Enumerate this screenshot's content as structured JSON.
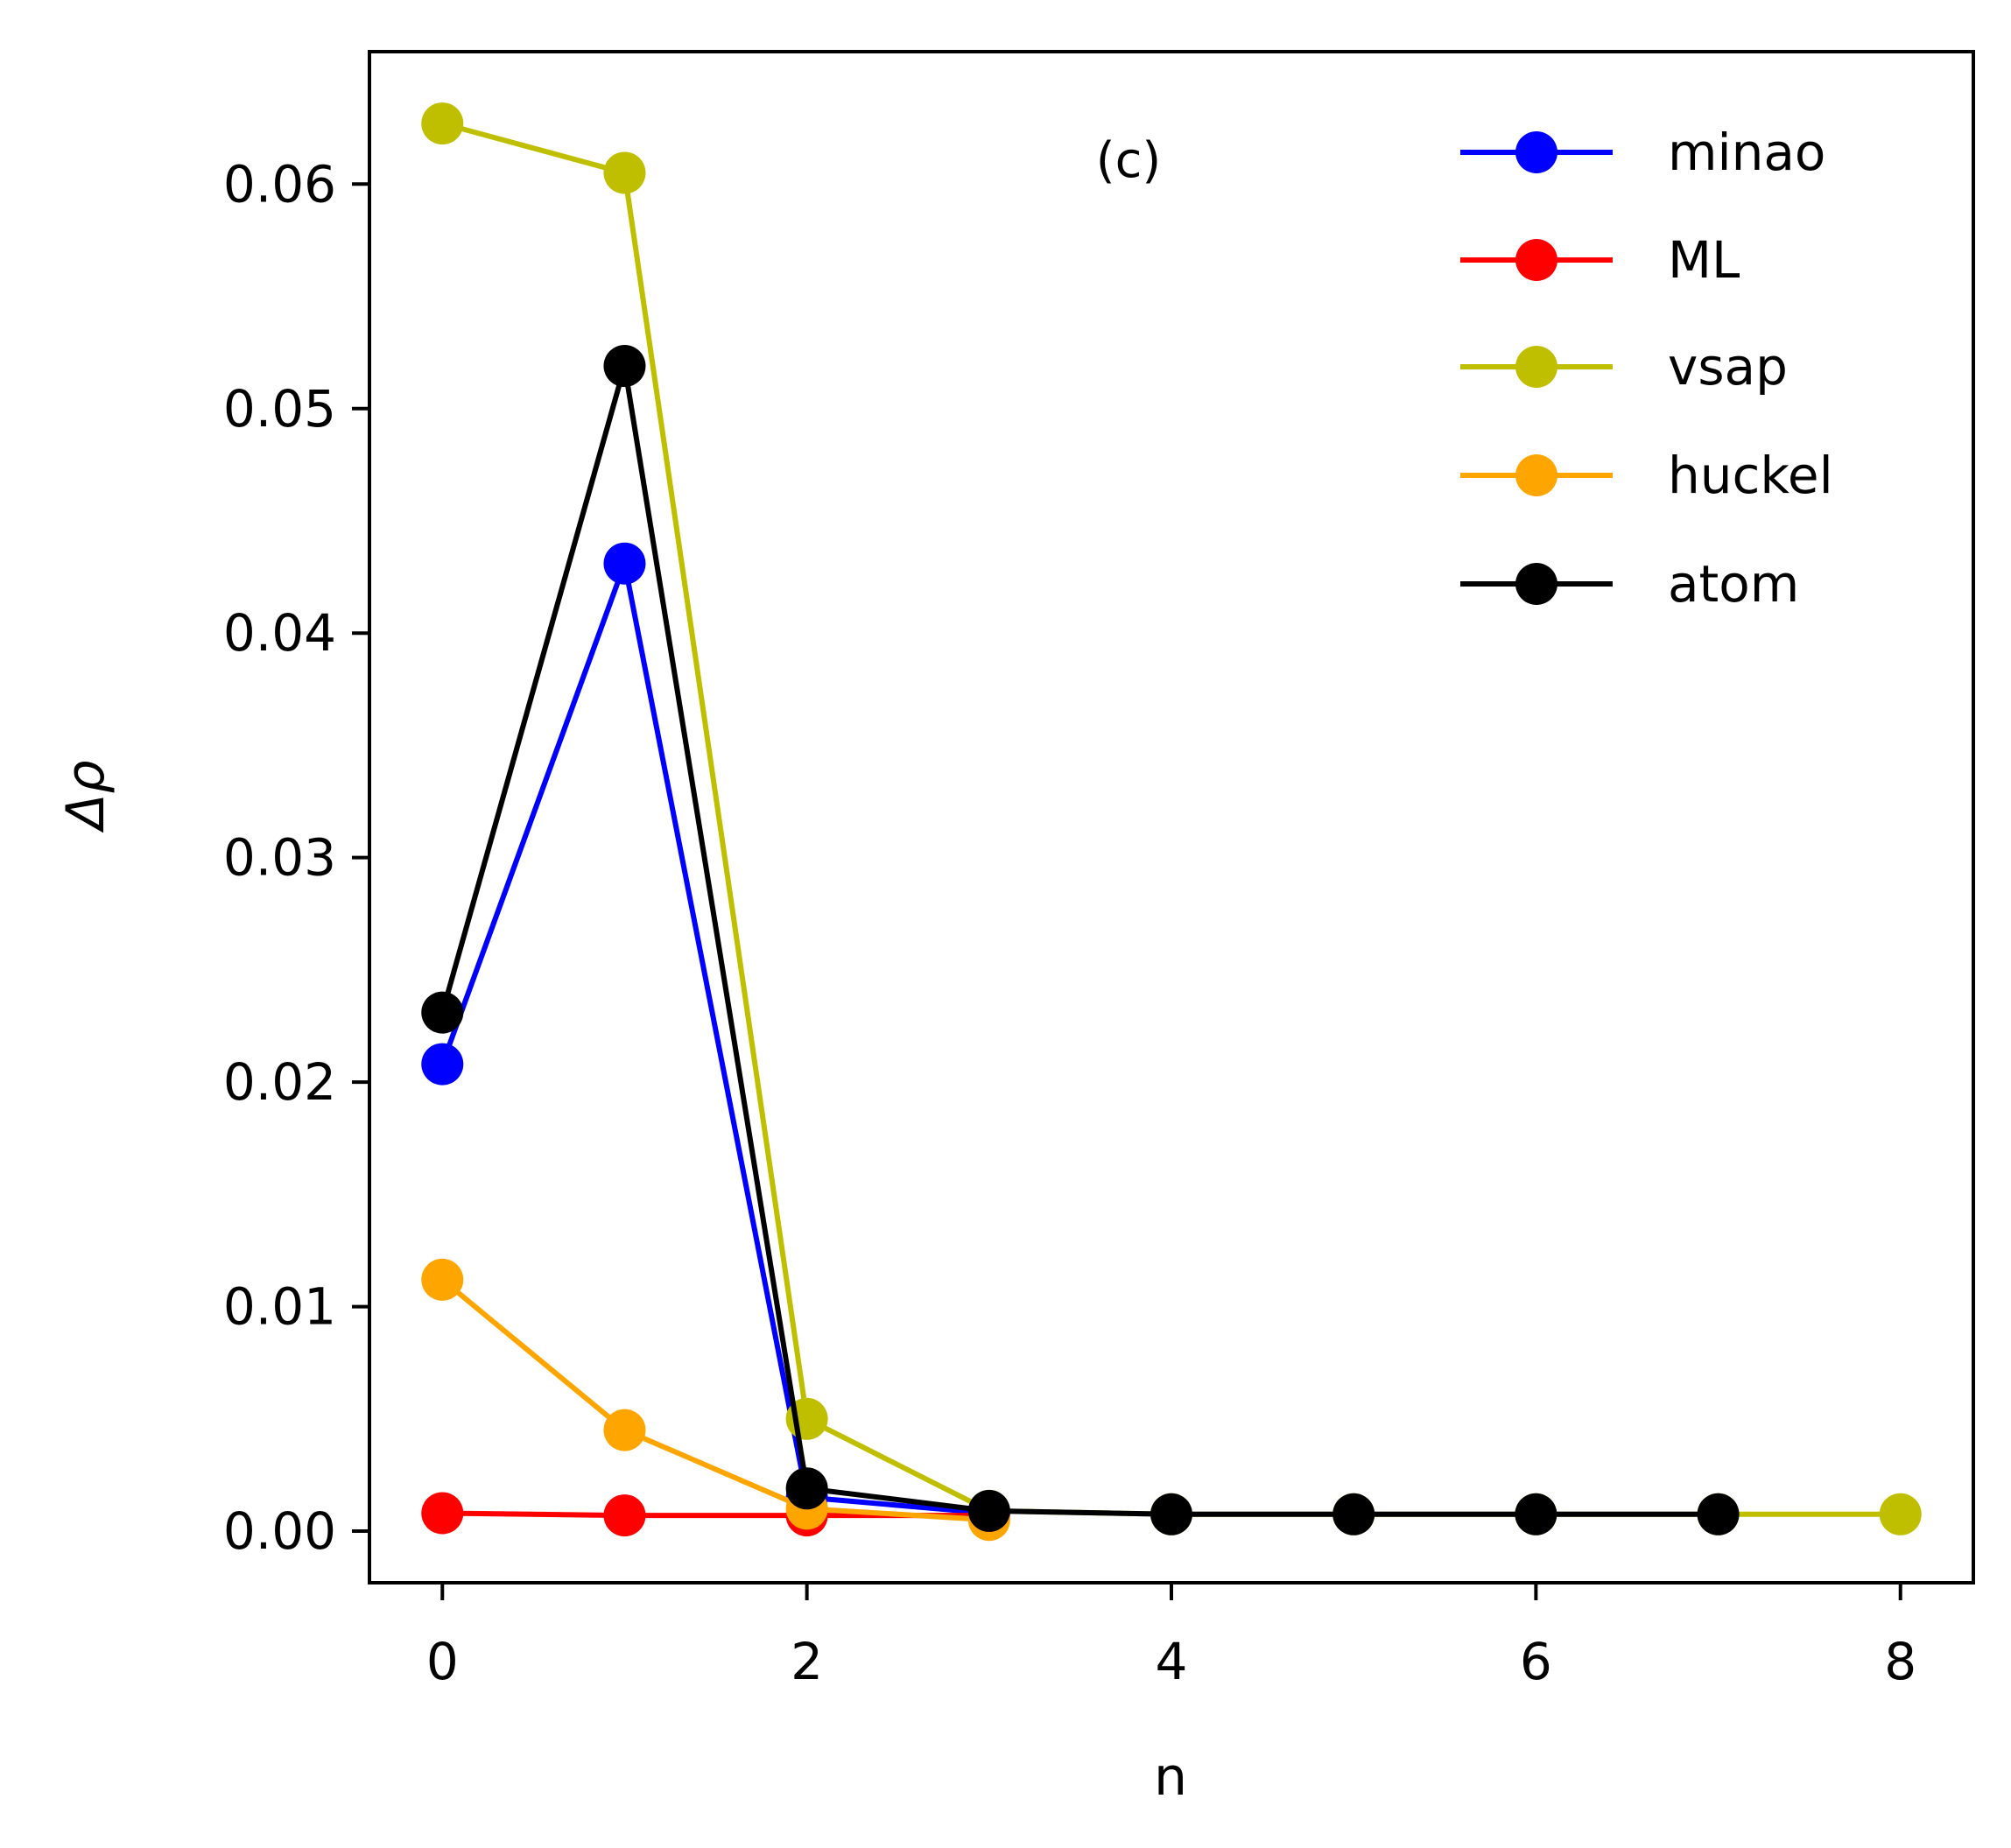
{
  "chart_data": {
    "type": "line",
    "title": "",
    "annotation": "(c)",
    "xlabel": "n",
    "ylabel": "Δρ",
    "xlim": [
      -0.4,
      8.4
    ],
    "ylim": [
      -0.0023,
      0.0659
    ],
    "xticks": [
      0,
      2,
      4,
      6,
      8
    ],
    "xtick_labels": [
      "0",
      "2",
      "4",
      "6",
      "8"
    ],
    "yticks": [
      0,
      0.01,
      0.02,
      0.03,
      0.04,
      0.05,
      0.06
    ],
    "ytick_labels": [
      "0.00",
      "0.01",
      "0.02",
      "0.03",
      "0.04",
      "0.05",
      "0.06"
    ],
    "grid": false,
    "legend_position": "top-right",
    "series": [
      {
        "name": "minao",
        "color": "#0000ff",
        "x": [
          0,
          1,
          2,
          3
        ],
        "y": [
          0.0208,
          0.0431,
          0.0015,
          0.0008
        ]
      },
      {
        "name": "ML",
        "color": "#ff0000",
        "x": [
          0,
          1,
          2,
          3
        ],
        "y": [
          0.0008,
          0.0007,
          0.0007,
          0.0007
        ]
      },
      {
        "name": "vsap",
        "color": "#bfbf00",
        "x": [
          0,
          1,
          2,
          3,
          4,
          5,
          6,
          7,
          8
        ],
        "y": [
          0.0627,
          0.0605,
          0.005,
          0.0009,
          0.00075,
          0.00075,
          0.00075,
          0.00075,
          0.00075
        ]
      },
      {
        "name": "huckel",
        "color": "#ffa500",
        "x": [
          0,
          1,
          2,
          3
        ],
        "y": [
          0.0112,
          0.0045,
          0.001,
          0.0005
        ]
      },
      {
        "name": "atom",
        "color": "#000000",
        "x": [
          0,
          1,
          2,
          3,
          4,
          5,
          6,
          7
        ],
        "y": [
          0.0231,
          0.0519,
          0.0019,
          0.0009,
          0.00075,
          0.00075,
          0.00075,
          0.00075
        ]
      }
    ]
  }
}
